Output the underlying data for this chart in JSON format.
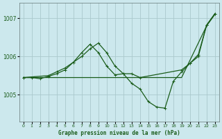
{
  "title": "Graphe pression niveau de la mer (hPa)",
  "bg_color": "#cce8ed",
  "grid_color": "#aac8cc",
  "line_color": "#1a5c1a",
  "xlim": [
    -0.5,
    23.5
  ],
  "ylim": [
    1004.3,
    1007.4
  ],
  "yticks": [
    1005,
    1006,
    1007
  ],
  "xticks": [
    0,
    1,
    2,
    3,
    4,
    5,
    6,
    7,
    8,
    9,
    10,
    11,
    12,
    13,
    14,
    15,
    16,
    17,
    18,
    19,
    20,
    21,
    22,
    23
  ],
  "series_straight": {
    "x": [
      0,
      1,
      2,
      3,
      4,
      5,
      6,
      7,
      8,
      9,
      10,
      11,
      12,
      13,
      14,
      19,
      22,
      23
    ],
    "y": [
      1005.45,
      1005.45,
      1005.45,
      1005.45,
      1005.45,
      1005.45,
      1005.45,
      1005.45,
      1005.45,
      1005.45,
      1005.45,
      1005.45,
      1005.45,
      1005.45,
      1005.45,
      1005.45,
      1006.8,
      1007.1
    ]
  },
  "series_upper": {
    "x": [
      0,
      3,
      4,
      5,
      6,
      7,
      8,
      9,
      10,
      11,
      12,
      13,
      14,
      19,
      20,
      21,
      22,
      23
    ],
    "y": [
      1005.45,
      1005.5,
      1005.6,
      1005.7,
      1005.85,
      1006.0,
      1006.2,
      1006.35,
      1006.1,
      1005.75,
      1005.55,
      1005.55,
      1005.45,
      1005.65,
      1005.82,
      1006.0,
      1006.82,
      1007.12
    ]
  },
  "series_main": {
    "x": [
      0,
      1,
      2,
      3,
      4,
      5,
      6,
      7,
      8,
      9,
      10,
      11,
      12,
      13,
      14,
      15,
      16,
      17,
      18,
      19,
      20,
      21,
      22,
      23
    ],
    "y": [
      1005.45,
      1005.45,
      1005.42,
      1005.48,
      1005.55,
      1005.65,
      1005.85,
      1006.1,
      1006.32,
      1006.1,
      1005.75,
      1005.52,
      1005.55,
      1005.3,
      1005.15,
      1004.82,
      1004.68,
      1004.65,
      1005.35,
      1005.6,
      1005.82,
      1006.05,
      1006.82,
      1007.12
    ]
  }
}
